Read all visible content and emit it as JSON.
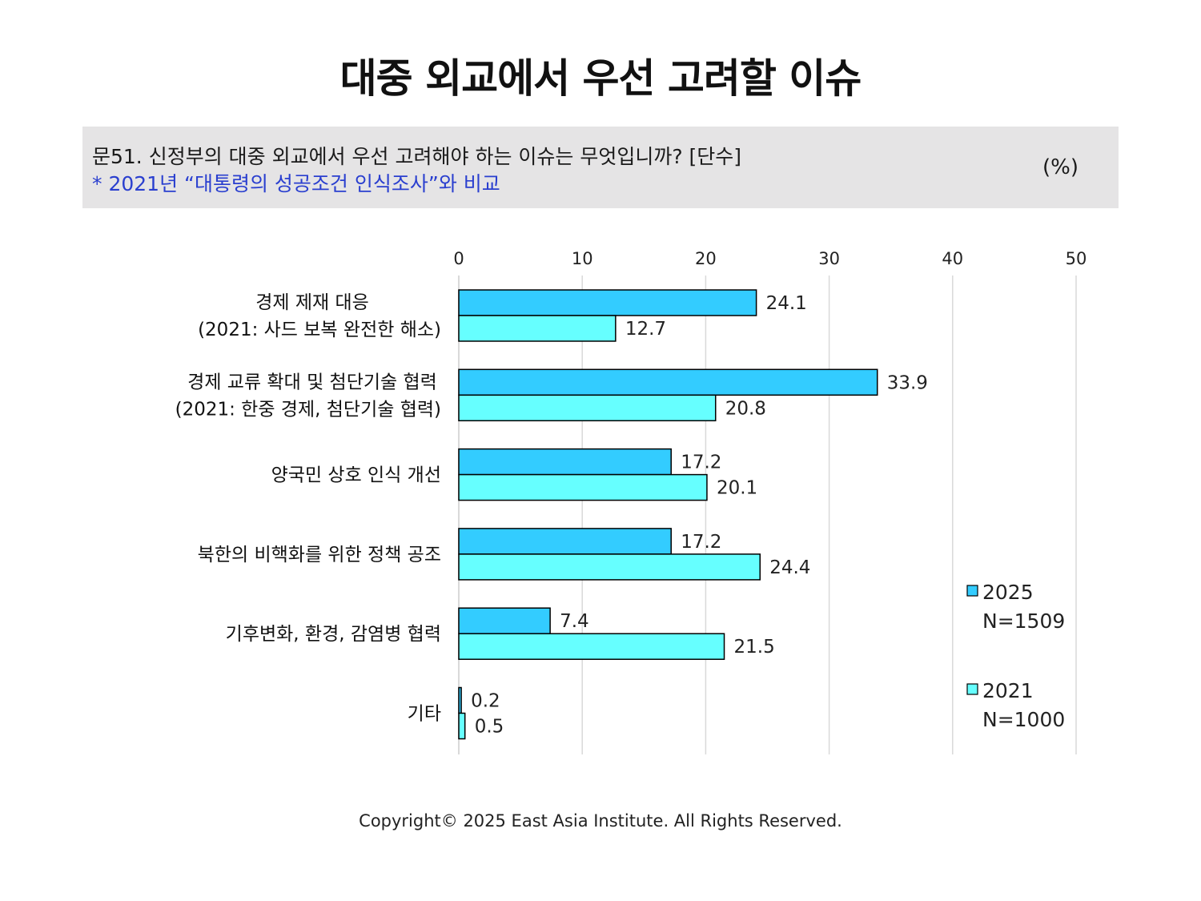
{
  "title": "대중 외교에서 우선 고려할 이슈",
  "question": {
    "text": "문51. 신정부의 대중 외교에서 우선 고려해야 하는 이슈는 무엇입니까? [단수]",
    "note": "* 2021년 “대통령의 성공조건 인식조사”와 비교",
    "unit": "(%)"
  },
  "footer": "Copyright© 2025 East Asia Institute. All Rights Reserved.",
  "colors": {
    "series_2025": "#33ccff",
    "series_2021": "#66ffff",
    "grid": "#d9d9d9",
    "outline": "#000000",
    "question_bg": "#e5e4e5",
    "note_text": "#2a3fcf"
  },
  "chart_data": {
    "type": "bar",
    "orientation": "horizontal",
    "xlim": [
      0,
      50
    ],
    "x_ticks": [
      "0",
      "10",
      "20",
      "30",
      "40",
      "50"
    ],
    "grid": true,
    "legend_position": "right",
    "categories": [
      [
        "경제 제재 대응",
        "(2021: 사드 보복 완전한 해소)"
      ],
      [
        "경제 교류 확대 및 첨단기술 협력",
        "(2021: 한중 경제, 첨단기술 협력)"
      ],
      [
        "양국민 상호 인식 개선"
      ],
      [
        "북한의 비핵화를 위한 정책 공조"
      ],
      [
        "기후변화, 환경, 감염병 협력"
      ],
      [
        "기타"
      ]
    ],
    "series": [
      {
        "name": "2025",
        "sample": "N=1509",
        "values": [
          24.1,
          33.9,
          17.2,
          17.2,
          7.4,
          0.2
        ]
      },
      {
        "name": "2021",
        "sample": "N=1000",
        "values": [
          12.7,
          20.8,
          20.1,
          24.4,
          21.5,
          0.5
        ]
      }
    ]
  }
}
